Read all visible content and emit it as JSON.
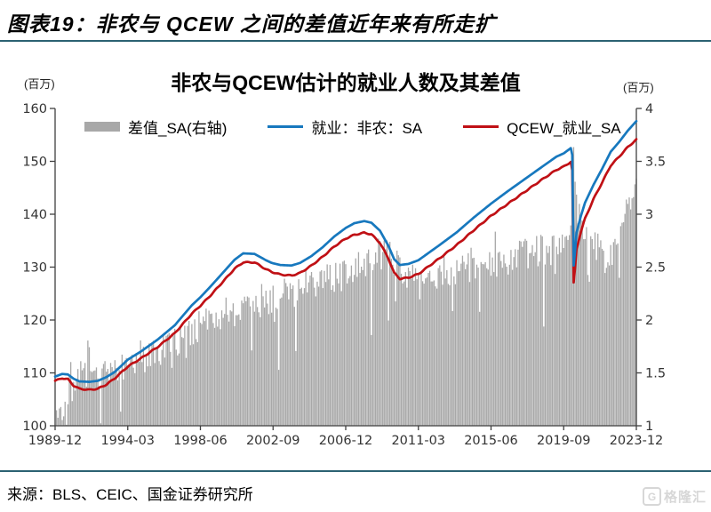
{
  "caption": "图表19：非农与 QCEW 之间的差值近年来有所走扩",
  "source": "来源：BLS、CEIC、国金证券研究所",
  "watermark": {
    "g": "G",
    "text": "格隆汇"
  },
  "colors": {
    "rule": "#2b6272",
    "bar": "#a8a8a8",
    "nonfarm_line": "#1778be",
    "qcew_line": "#c01015",
    "axis": "#404040",
    "tick_text": "#333333",
    "watermark": "#d7d7d7"
  },
  "chart_data": {
    "type": "bar+line",
    "title": "非农与QCEW估计的就业人数及其差值",
    "left_axis": {
      "unit": "(百万)",
      "min": 100,
      "max": 160,
      "ticks": [
        100,
        110,
        120,
        130,
        140,
        150,
        160
      ]
    },
    "right_axis": {
      "unit": "(百万)",
      "min": 1,
      "max": 4,
      "ticks": [
        1,
        1.5,
        2,
        2.5,
        3,
        3.5,
        4
      ]
    },
    "x_axis": {
      "months_total": 409,
      "tick_months": [
        0,
        51,
        102,
        153,
        204,
        255,
        306,
        357,
        408
      ],
      "tick_labels": [
        "1989-12",
        "1994-03",
        "1998-06",
        "2002-09",
        "2006-12",
        "2011-03",
        "2015-06",
        "2019-09",
        "2023-12"
      ]
    },
    "legend": [
      {
        "label": "差值_SA(右轴)",
        "type": "bar",
        "color": "#a8a8a8"
      },
      {
        "label": "就业：非农：SA",
        "type": "line",
        "color": "#1778be"
      },
      {
        "label": "QCEW_就业_SA",
        "type": "line",
        "color": "#c01015"
      }
    ],
    "series": {
      "nonfarm_keypoints": [
        [
          0,
          109.3
        ],
        [
          5,
          109.8
        ],
        [
          9,
          109.7
        ],
        [
          13,
          108.9
        ],
        [
          17,
          108.4
        ],
        [
          24,
          108.3
        ],
        [
          30,
          108.5
        ],
        [
          36,
          109.2
        ],
        [
          42,
          110.2
        ],
        [
          51,
          112.5
        ],
        [
          60,
          114.0
        ],
        [
          72,
          116.3
        ],
        [
          84,
          119.0
        ],
        [
          96,
          122.8
        ],
        [
          102,
          124.3
        ],
        [
          110,
          126.6
        ],
        [
          120,
          129.6
        ],
        [
          126,
          131.4
        ],
        [
          132,
          132.6
        ],
        [
          140,
          132.5
        ],
        [
          148,
          131.3
        ],
        [
          152,
          130.8
        ],
        [
          158,
          130.4
        ],
        [
          166,
          130.3
        ],
        [
          172,
          130.8
        ],
        [
          180,
          132.1
        ],
        [
          188,
          133.8
        ],
        [
          196,
          135.8
        ],
        [
          204,
          137.4
        ],
        [
          210,
          138.3
        ],
        [
          217,
          138.7
        ],
        [
          222,
          138.4
        ],
        [
          228,
          136.9
        ],
        [
          234,
          134.0
        ],
        [
          238,
          131.5
        ],
        [
          242,
          130.4
        ],
        [
          248,
          130.6
        ],
        [
          255,
          131.3
        ],
        [
          270,
          134.2
        ],
        [
          282,
          136.6
        ],
        [
          294,
          139.4
        ],
        [
          306,
          142.0
        ],
        [
          318,
          144.4
        ],
        [
          330,
          146.7
        ],
        [
          342,
          149.0
        ],
        [
          352,
          150.9
        ],
        [
          357,
          151.5
        ],
        [
          362,
          152.5
        ],
        [
          363,
          151.2
        ],
        [
          364,
          130.3
        ],
        [
          365,
          133.0
        ],
        [
          366,
          136.5
        ],
        [
          369,
          139.6
        ],
        [
          372,
          142.2
        ],
        [
          378,
          145.6
        ],
        [
          384,
          148.6
        ],
        [
          390,
          151.8
        ],
        [
          396,
          153.7
        ],
        [
          402,
          155.8
        ],
        [
          408,
          157.6
        ]
      ],
      "qcew_keypoints": [
        [
          0,
          108.5
        ],
        [
          5,
          109.0
        ],
        [
          9,
          108.8
        ],
        [
          13,
          107.6
        ],
        [
          17,
          107.0
        ],
        [
          24,
          106.8
        ],
        [
          30,
          107.0
        ],
        [
          36,
          107.8
        ],
        [
          42,
          109.0
        ],
        [
          51,
          111.2
        ],
        [
          60,
          112.7
        ],
        [
          72,
          114.9
        ],
        [
          84,
          117.5
        ],
        [
          96,
          121.2
        ],
        [
          102,
          122.7
        ],
        [
          110,
          124.9
        ],
        [
          120,
          127.9
        ],
        [
          126,
          129.7
        ],
        [
          132,
          130.9
        ],
        [
          140,
          130.9
        ],
        [
          148,
          129.6
        ],
        [
          152,
          129.1
        ],
        [
          158,
          128.6
        ],
        [
          166,
          128.4
        ],
        [
          172,
          128.9
        ],
        [
          180,
          130.3
        ],
        [
          188,
          132.0
        ],
        [
          196,
          133.9
        ],
        [
          204,
          135.4
        ],
        [
          210,
          136.1
        ],
        [
          217,
          136.5
        ],
        [
          222,
          136.2
        ],
        [
          228,
          134.6
        ],
        [
          234,
          131.6
        ],
        [
          238,
          128.9
        ],
        [
          242,
          127.8
        ],
        [
          248,
          128.0
        ],
        [
          255,
          128.7
        ],
        [
          270,
          131.7
        ],
        [
          282,
          134.2
        ],
        [
          294,
          137.0
        ],
        [
          306,
          139.7
        ],
        [
          318,
          142.0
        ],
        [
          330,
          144.3
        ],
        [
          342,
          146.6
        ],
        [
          352,
          148.4
        ],
        [
          357,
          149.0
        ],
        [
          362,
          149.9
        ],
        [
          363,
          148.2
        ],
        [
          364,
          127.0
        ],
        [
          365,
          129.8
        ],
        [
          366,
          133.4
        ],
        [
          369,
          136.6
        ],
        [
          372,
          139.2
        ],
        [
          378,
          142.9
        ],
        [
          384,
          146.0
        ],
        [
          390,
          149.2
        ],
        [
          396,
          150.9
        ],
        [
          402,
          152.7
        ],
        [
          408,
          154.1
        ]
      ],
      "diff_base_keypoints": [
        [
          0,
          1.08
        ],
        [
          6,
          1.1
        ],
        [
          9,
          1.12
        ],
        [
          10,
          1.45
        ],
        [
          24,
          1.5
        ],
        [
          40,
          1.52
        ],
        [
          51,
          1.55
        ],
        [
          64,
          1.62
        ],
        [
          78,
          1.72
        ],
        [
          90,
          1.85
        ],
        [
          102,
          1.95
        ],
        [
          114,
          2.02
        ],
        [
          126,
          2.1
        ],
        [
          140,
          2.18
        ],
        [
          153,
          2.2
        ],
        [
          168,
          2.28
        ],
        [
          180,
          2.32
        ],
        [
          192,
          2.38
        ],
        [
          204,
          2.42
        ],
        [
          214,
          2.5
        ],
        [
          222,
          2.6
        ],
        [
          232,
          2.65
        ],
        [
          240,
          2.5
        ],
        [
          248,
          2.42
        ],
        [
          255,
          2.35
        ],
        [
          268,
          2.42
        ],
        [
          280,
          2.48
        ],
        [
          294,
          2.5
        ],
        [
          306,
          2.52
        ],
        [
          320,
          2.58
        ],
        [
          332,
          2.62
        ],
        [
          344,
          2.66
        ],
        [
          357,
          2.7
        ],
        [
          362,
          2.9
        ],
        [
          364,
          3.65
        ],
        [
          365,
          3.2
        ],
        [
          368,
          2.95
        ],
        [
          374,
          2.8
        ],
        [
          380,
          2.72
        ],
        [
          386,
          2.6
        ],
        [
          392,
          2.65
        ],
        [
          398,
          2.85
        ],
        [
          402,
          3.05
        ],
        [
          408,
          3.45
        ]
      ],
      "diff_noise_amp": 0.16,
      "noise_seed": 7,
      "red_wiggle": 0.1
    }
  }
}
